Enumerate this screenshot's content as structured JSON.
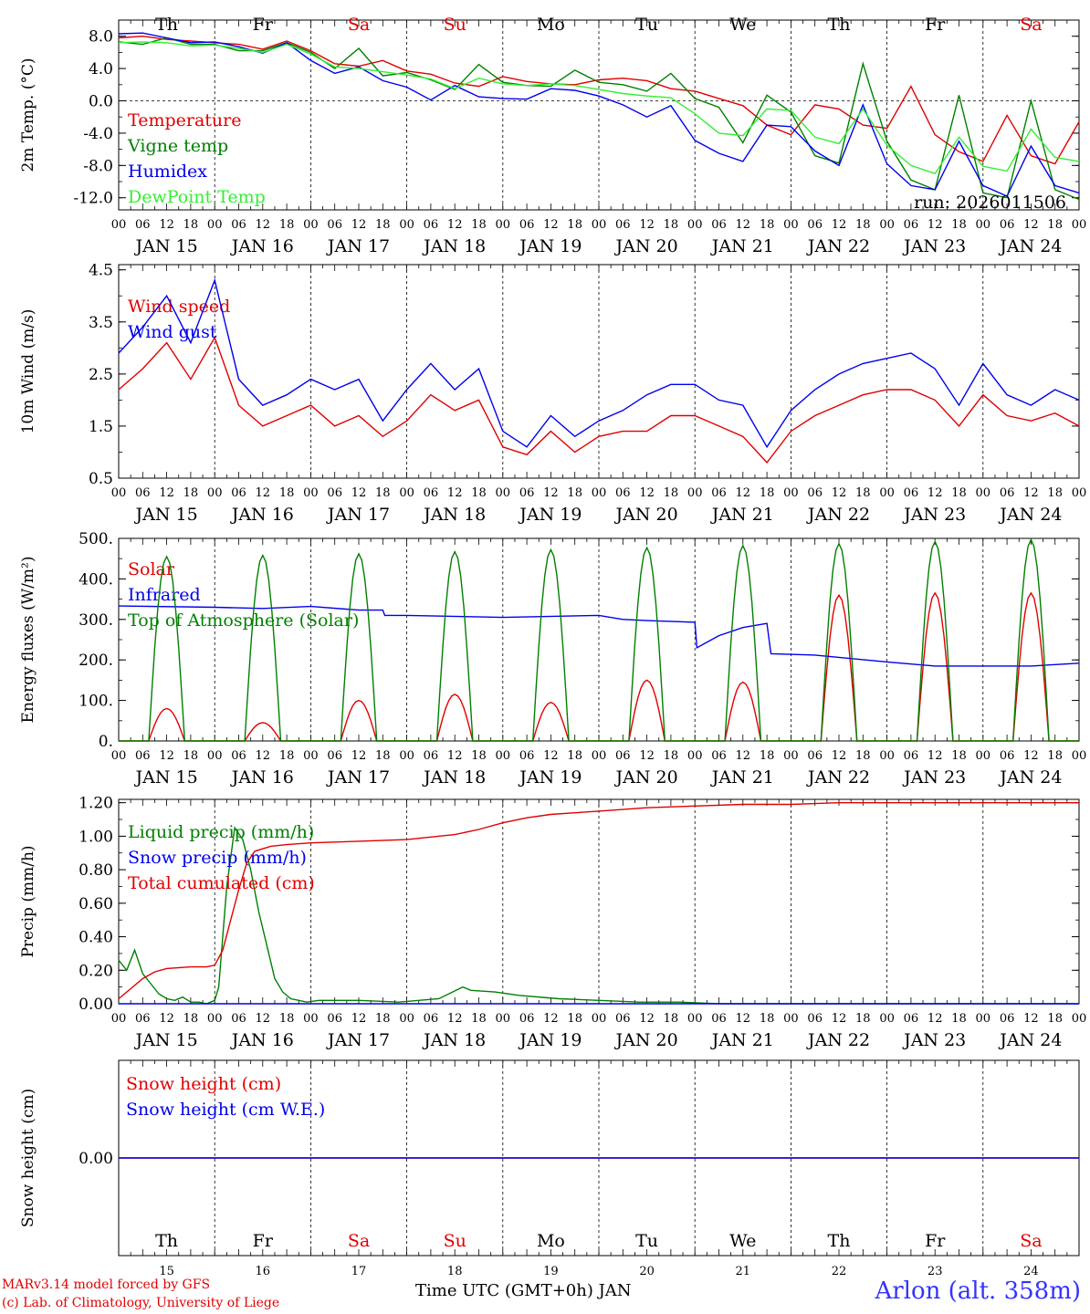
{
  "days": [
    {
      "abbr": "Th",
      "num": "15",
      "date": "JAN 15",
      "weekend": false
    },
    {
      "abbr": "Fr",
      "num": "16",
      "date": "JAN 16",
      "weekend": false
    },
    {
      "abbr": "Sa",
      "num": "17",
      "date": "JAN 17",
      "weekend": true
    },
    {
      "abbr": "Su",
      "num": "18",
      "date": "JAN 18",
      "weekend": true
    },
    {
      "abbr": "Mo",
      "num": "19",
      "date": "JAN 19",
      "weekend": false
    },
    {
      "abbr": "Tu",
      "num": "20",
      "date": "JAN 20",
      "weekend": false
    },
    {
      "abbr": "We",
      "num": "21",
      "date": "JAN 21",
      "weekend": false
    },
    {
      "abbr": "Th",
      "num": "22",
      "date": "JAN 22",
      "weekend": false
    },
    {
      "abbr": "Fr",
      "num": "23",
      "date": "JAN 23",
      "weekend": false
    },
    {
      "abbr": "Sa",
      "num": "24",
      "date": "JAN 24",
      "weekend": true
    }
  ],
  "hour_labels": [
    "00",
    "06",
    "12",
    "18"
  ],
  "final_hour_label": "00",
  "run_label": "run: 2026011506",
  "footer": {
    "model_line": "MARv3.14 model forced by GFS",
    "credit_line": "(c) Lab. of Climatology, University of Liege",
    "time_axis_label": "Time UTC (GMT+0h) JAN",
    "station": "Arlon (alt. 358m)"
  },
  "colors": {
    "red": "#e00000",
    "green": "#008000",
    "blue": "#0000ee",
    "lightgreen": "#33ee33",
    "weekend": "#e00000"
  },
  "chart_data": [
    {
      "id": "temperature",
      "type": "line",
      "ylabel": "2m Temp. (°C)",
      "ylim": [
        -13.5,
        10.0
      ],
      "yticks": [
        -12,
        -8,
        -4,
        0,
        4,
        8
      ],
      "ytick_labels": [
        "-12.0",
        "-8.0",
        "-4.0",
        "0.0",
        "4.0",
        "8.0"
      ],
      "x_unit": "hours since JAN 15 00 UTC",
      "xlim": [
        0,
        240
      ],
      "zero_line": true,
      "series": [
        {
          "name": "Temperature",
          "color": "red",
          "x": [
            0,
            6,
            12,
            18,
            24,
            30,
            36,
            42,
            48,
            54,
            60,
            66,
            72,
            78,
            84,
            90,
            96,
            102,
            108,
            114,
            120,
            126,
            132,
            138,
            144,
            150,
            156,
            162,
            168,
            174,
            180,
            186,
            192,
            198,
            204,
            210,
            216,
            222,
            228,
            234,
            240
          ],
          "values": [
            7.8,
            8.0,
            7.6,
            7.4,
            7.2,
            7.0,
            6.4,
            7.4,
            6.2,
            4.6,
            4.3,
            5.0,
            3.7,
            3.3,
            2.2,
            1.8,
            3.0,
            2.4,
            2.1,
            2.0,
            2.6,
            2.8,
            2.5,
            1.5,
            1.2,
            0.3,
            -0.6,
            -3.0,
            -4.2,
            -0.5,
            -1.0,
            -3.0,
            -3.4,
            1.8,
            -4.2,
            -6.3,
            -7.5,
            -1.8,
            -6.8,
            -7.8,
            -2.6
          ]
        },
        {
          "name": "Vigne temp",
          "color": "green",
          "x": [
            0,
            6,
            12,
            18,
            24,
            30,
            36,
            42,
            48,
            54,
            60,
            66,
            72,
            78,
            84,
            90,
            96,
            102,
            108,
            114,
            120,
            126,
            132,
            138,
            144,
            150,
            156,
            162,
            168,
            174,
            180,
            186,
            192,
            198,
            204,
            210,
            216,
            222,
            228,
            234,
            240
          ],
          "values": [
            7.3,
            7.0,
            7.8,
            7.0,
            7.0,
            6.2,
            6.2,
            7.2,
            6.0,
            4.0,
            6.5,
            3.1,
            3.5,
            2.6,
            1.4,
            4.5,
            2.3,
            1.9,
            1.8,
            3.8,
            2.3,
            2.0,
            1.2,
            3.4,
            0.3,
            -0.8,
            -5.2,
            0.7,
            -1.4,
            -6.8,
            -7.7,
            4.6,
            -5.0,
            -9.8,
            -11.0,
            0.7,
            -11.4,
            -12.0,
            0.0,
            -11.0,
            -12.2
          ]
        },
        {
          "name": "Humidex",
          "color": "blue",
          "x": [
            0,
            6,
            12,
            18,
            24,
            30,
            36,
            42,
            48,
            54,
            60,
            66,
            72,
            78,
            84,
            90,
            96,
            102,
            108,
            114,
            120,
            126,
            132,
            138,
            144,
            150,
            156,
            162,
            168,
            174,
            180,
            186,
            192,
            198,
            204,
            210,
            216,
            222,
            228,
            234,
            240
          ],
          "values": [
            8.3,
            8.4,
            7.8,
            7.2,
            7.3,
            6.7,
            5.9,
            7.2,
            5.0,
            3.4,
            4.2,
            2.5,
            1.7,
            0.1,
            1.9,
            0.5,
            0.3,
            0.2,
            1.5,
            1.3,
            0.6,
            -0.5,
            -2.0,
            -0.6,
            -4.9,
            -6.5,
            -7.5,
            -3.0,
            -3.2,
            -6.2,
            -8.0,
            -0.5,
            -7.8,
            -10.5,
            -11.0,
            -5.0,
            -10.5,
            -11.8,
            -5.6,
            -10.5,
            -11.4
          ]
        },
        {
          "name": "DewPoint Temp",
          "color": "lightgreen",
          "x": [
            0,
            6,
            12,
            18,
            24,
            30,
            36,
            42,
            48,
            54,
            60,
            66,
            72,
            78,
            84,
            90,
            96,
            102,
            108,
            114,
            120,
            126,
            132,
            138,
            144,
            150,
            156,
            162,
            168,
            174,
            180,
            186,
            192,
            198,
            204,
            210,
            216,
            222,
            228,
            234,
            240
          ],
          "values": [
            7.2,
            7.3,
            7.2,
            6.8,
            6.9,
            6.5,
            6.0,
            7.0,
            5.8,
            4.2,
            4.0,
            3.6,
            3.2,
            2.7,
            1.5,
            2.8,
            2.1,
            1.9,
            2.1,
            1.9,
            1.4,
            0.9,
            0.6,
            0.4,
            -1.6,
            -4.0,
            -4.3,
            -1.0,
            -1.2,
            -4.5,
            -5.3,
            -1.0,
            -5.5,
            -8.0,
            -9.0,
            -4.5,
            -8.1,
            -8.7,
            -3.5,
            -7.0,
            -7.5
          ]
        }
      ]
    },
    {
      "id": "wind",
      "type": "line",
      "ylabel": "10m Wind (m/s)",
      "ylim": [
        0.5,
        4.6
      ],
      "yticks": [
        0.5,
        1.5,
        2.5,
        3.5,
        4.5
      ],
      "ytick_labels": [
        "0.5",
        "1.5",
        "2.5",
        "3.5",
        "4.5"
      ],
      "x_unit": "hours since JAN 15 00 UTC",
      "xlim": [
        0,
        240
      ],
      "series": [
        {
          "name": "Wind speed",
          "color": "red",
          "x": [
            0,
            6,
            12,
            18,
            24,
            30,
            36,
            42,
            48,
            54,
            60,
            66,
            72,
            78,
            84,
            90,
            96,
            102,
            108,
            114,
            120,
            126,
            132,
            138,
            144,
            150,
            156,
            162,
            168,
            174,
            180,
            186,
            192,
            198,
            204,
            210,
            216,
            222,
            228,
            234,
            240
          ],
          "values": [
            2.2,
            2.6,
            3.1,
            2.4,
            3.2,
            1.9,
            1.5,
            1.7,
            1.9,
            1.5,
            1.7,
            1.3,
            1.6,
            2.1,
            1.8,
            2.0,
            1.1,
            0.95,
            1.4,
            1.0,
            1.3,
            1.4,
            1.4,
            1.7,
            1.7,
            1.5,
            1.3,
            0.8,
            1.4,
            1.7,
            1.9,
            2.1,
            2.2,
            2.2,
            2.0,
            1.5,
            2.1,
            1.7,
            1.6,
            1.75,
            1.5
          ]
        },
        {
          "name": "Wind gust",
          "color": "blue",
          "x": [
            0,
            6,
            12,
            18,
            24,
            30,
            36,
            42,
            48,
            54,
            60,
            66,
            72,
            78,
            84,
            90,
            96,
            102,
            108,
            114,
            120,
            126,
            132,
            138,
            144,
            150,
            156,
            162,
            168,
            174,
            180,
            186,
            192,
            198,
            204,
            210,
            216,
            222,
            228,
            234,
            240
          ],
          "values": [
            2.9,
            3.4,
            4.0,
            3.1,
            4.3,
            2.4,
            1.9,
            2.1,
            2.4,
            2.2,
            2.4,
            1.6,
            2.2,
            2.7,
            2.2,
            2.6,
            1.4,
            1.1,
            1.7,
            1.3,
            1.6,
            1.8,
            2.1,
            2.3,
            2.3,
            2.0,
            1.9,
            1.1,
            1.8,
            2.2,
            2.5,
            2.7,
            2.8,
            2.9,
            2.6,
            1.9,
            2.7,
            2.1,
            1.9,
            2.2,
            2.0
          ]
        }
      ]
    },
    {
      "id": "energy",
      "type": "line",
      "ylabel": "Energy fluxes (W/m²)",
      "ylim": [
        0,
        500
      ],
      "yticks": [
        0,
        100,
        200,
        300,
        400,
        500
      ],
      "ytick_labels": [
        "0.",
        "100.",
        "200.",
        "300.",
        "400.",
        "500."
      ],
      "x_unit": "hours since JAN 15 00 UTC",
      "xlim": [
        0,
        240
      ],
      "series": [
        {
          "name": "Solar",
          "color": "red",
          "diurnal": true,
          "peak_hour": 12,
          "half_width_hours": 4.5,
          "daily_peaks": [
            80,
            45,
            100,
            115,
            95,
            150,
            145,
            360,
            365,
            365
          ]
        },
        {
          "name": "Infrared",
          "color": "blue",
          "x": [
            0,
            24,
            36,
            48,
            60,
            66,
            66.5,
            72,
            96,
            120,
            126,
            132,
            144,
            144.5,
            150,
            156,
            162,
            163,
            174,
            192,
            204,
            216,
            228,
            240
          ],
          "values": [
            333,
            330,
            327,
            332,
            323,
            323,
            310,
            310,
            305,
            310,
            300,
            297,
            293,
            230,
            260,
            280,
            290,
            215,
            212,
            195,
            185,
            185,
            185,
            192
          ]
        },
        {
          "name": "Top of Atmosphere (Solar)",
          "color": "green",
          "diurnal": true,
          "peak_hour": 12,
          "half_width_hours": 4.5,
          "daily_peaks": [
            455,
            458,
            462,
            467,
            472,
            477,
            482,
            487,
            492,
            497
          ]
        }
      ]
    },
    {
      "id": "precip",
      "type": "line",
      "ylabel": "Precip (mm/h)",
      "ylim": [
        0,
        1.22
      ],
      "yticks": [
        0,
        0.2,
        0.4,
        0.6,
        0.8,
        1.0,
        1.2
      ],
      "ytick_labels": [
        "0.00",
        "0.20",
        "0.40",
        "0.60",
        "0.80",
        "1.00",
        "1.20"
      ],
      "x_unit": "hours since JAN 15 00 UTC",
      "xlim": [
        0,
        240
      ],
      "series": [
        {
          "name": "Liquid precip (mm/h)",
          "color": "green",
          "x": [
            0,
            2,
            4,
            6,
            8,
            10,
            12,
            14,
            16,
            18,
            20,
            22,
            24,
            25,
            27,
            29,
            31,
            33,
            35,
            37,
            39,
            41,
            43,
            45,
            47,
            50,
            60,
            70,
            80,
            86,
            88,
            94,
            100,
            110,
            120,
            130,
            140,
            150,
            160,
            170,
            180,
            190,
            200,
            210,
            220,
            230,
            240
          ],
          "values": [
            0.26,
            0.2,
            0.32,
            0.18,
            0.12,
            0.06,
            0.03,
            0.02,
            0.04,
            0.01,
            0.01,
            0.0,
            0.02,
            0.1,
            0.7,
            1.05,
            0.98,
            0.8,
            0.55,
            0.35,
            0.15,
            0.07,
            0.03,
            0.02,
            0.01,
            0.02,
            0.02,
            0.01,
            0.03,
            0.1,
            0.08,
            0.07,
            0.05,
            0.03,
            0.02,
            0.01,
            0.01,
            0.0,
            0.0,
            0.0,
            0.0,
            0.0,
            0.0,
            0.0,
            0.0,
            0.0,
            0.0
          ]
        },
        {
          "name": "Snow precip (mm/h)",
          "color": "blue",
          "x": [
            0,
            240
          ],
          "values": [
            0,
            0
          ]
        },
        {
          "name": "Total cumulated (cm)",
          "color": "red",
          "x": [
            0,
            3,
            6,
            9,
            12,
            18,
            22,
            24,
            26,
            28,
            30,
            32,
            34,
            38,
            42,
            48,
            60,
            72,
            84,
            90,
            96,
            102,
            108,
            114,
            120,
            132,
            144,
            156,
            168,
            180,
            192,
            216,
            240
          ],
          "values": [
            0.03,
            0.09,
            0.15,
            0.19,
            0.21,
            0.22,
            0.22,
            0.23,
            0.32,
            0.5,
            0.68,
            0.84,
            0.91,
            0.94,
            0.95,
            0.96,
            0.97,
            0.98,
            1.01,
            1.04,
            1.08,
            1.11,
            1.13,
            1.14,
            1.15,
            1.17,
            1.18,
            1.19,
            1.19,
            1.2,
            1.2,
            1.2,
            1.2
          ]
        }
      ]
    },
    {
      "id": "snow",
      "type": "line",
      "ylabel": "Snow height (cm)",
      "ylim": [
        -1,
        1
      ],
      "yticks": [
        0
      ],
      "ytick_labels": [
        "0.00"
      ],
      "x_unit": "hours since JAN 15 00 UTC",
      "xlim": [
        0,
        240
      ],
      "series": [
        {
          "name": "Snow height (cm)",
          "color": "red",
          "x": [
            0,
            240
          ],
          "values": [
            0,
            0
          ]
        },
        {
          "name": "Snow height (cm W.E.)",
          "color": "blue",
          "x": [
            0,
            240
          ],
          "values": [
            0,
            0
          ]
        }
      ]
    }
  ]
}
